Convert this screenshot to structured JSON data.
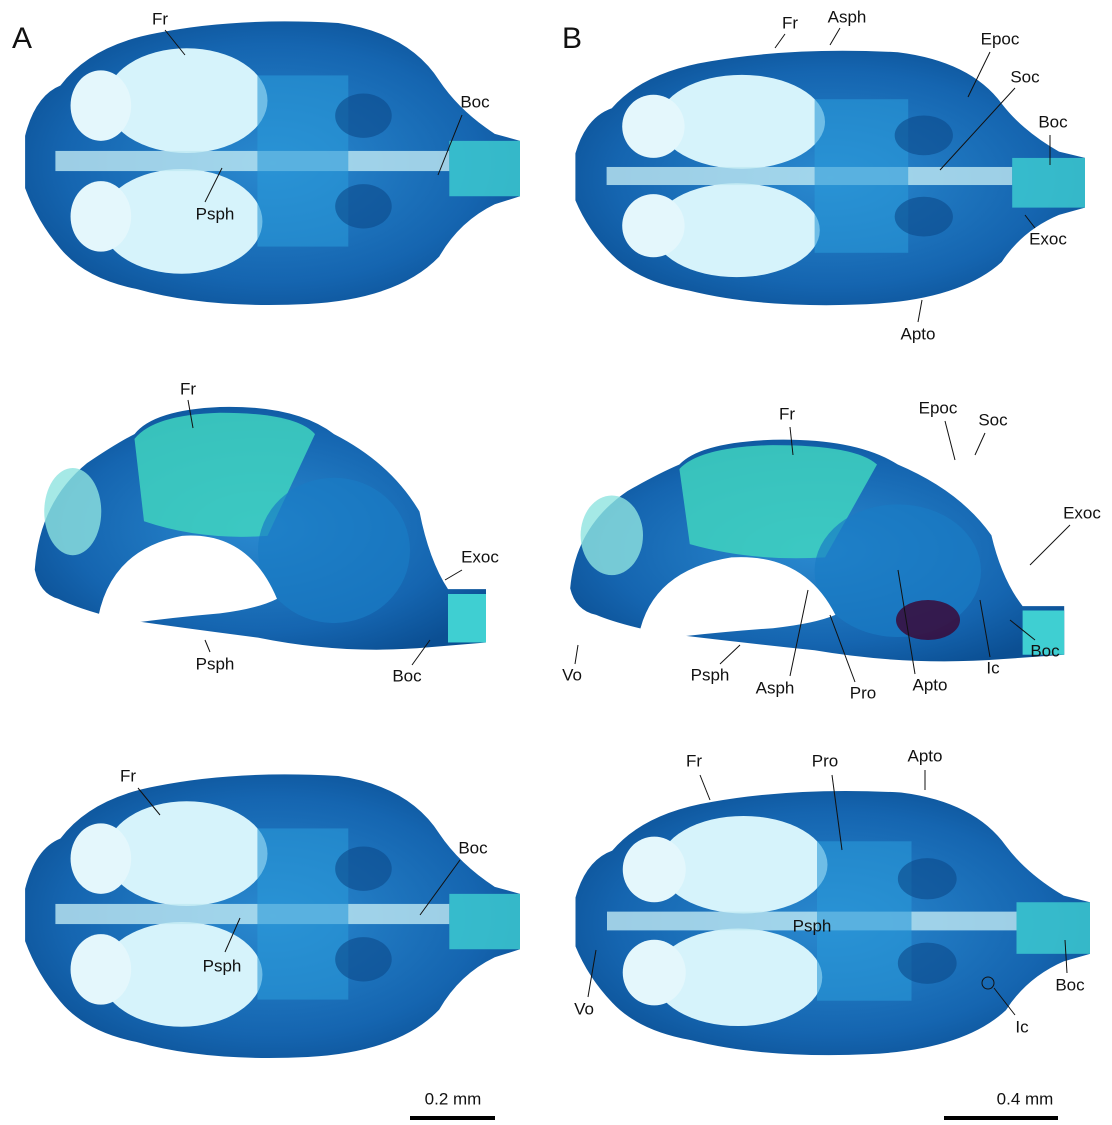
{
  "panels": [
    {
      "letter": "A",
      "scale_bar": "0.2 mm",
      "views": [
        {
          "labels": [
            "Fr",
            "Boc",
            "Psph"
          ]
        },
        {
          "labels": [
            "Fr",
            "Exoc",
            "Psph",
            "Boc"
          ]
        },
        {
          "labels": [
            "Fr",
            "Boc",
            "Psph"
          ]
        }
      ]
    },
    {
      "letter": "B",
      "scale_bar": "0.4 mm",
      "views": [
        {
          "labels": [
            "Fr",
            "Asph",
            "Epoc",
            "Soc",
            "Boc",
            "Exoc",
            "Apto"
          ]
        },
        {
          "labels": [
            "Fr",
            "Epoc",
            "Soc",
            "Exoc",
            "Vo",
            "Psph",
            "Asph",
            "Pro",
            "Apto",
            "Ic",
            "Boc"
          ]
        },
        {
          "labels": [
            "Fr",
            "Pro",
            "Apto",
            "Psph",
            "Vo",
            "Boc",
            "Ic"
          ]
        }
      ]
    }
  ]
}
